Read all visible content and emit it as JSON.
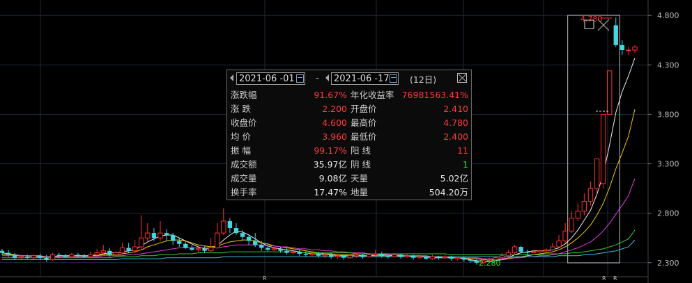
{
  "chart_data": {
    "type": "candlestick",
    "y_ticks": [
      "4.800",
      "4.300",
      "3.800",
      "3.300",
      "2.800",
      "2.300"
    ],
    "ylim": [
      2.2,
      4.9
    ],
    "x_markers": [
      "R",
      "R",
      "R"
    ],
    "annotations": {
      "high_label": "4.780",
      "low_label": "2.280"
    },
    "candles": [
      [
        2.42,
        2.4,
        2.44,
        2.38
      ],
      [
        2.4,
        2.38,
        2.43,
        2.36
      ],
      [
        2.38,
        2.35,
        2.4,
        2.33
      ],
      [
        2.35,
        2.36,
        2.38,
        2.33
      ],
      [
        2.36,
        2.35,
        2.38,
        2.34
      ],
      [
        2.35,
        2.37,
        2.38,
        2.33
      ],
      [
        2.37,
        2.35,
        2.39,
        2.33
      ],
      [
        2.35,
        2.33,
        2.38,
        2.31
      ],
      [
        2.33,
        2.38,
        2.4,
        2.32
      ],
      [
        2.38,
        2.37,
        2.4,
        2.35
      ],
      [
        2.37,
        2.36,
        2.39,
        2.35
      ],
      [
        2.36,
        2.38,
        2.4,
        2.35
      ],
      [
        2.38,
        2.37,
        2.4,
        2.35
      ],
      [
        2.37,
        2.36,
        2.39,
        2.35
      ],
      [
        2.36,
        2.38,
        2.41,
        2.35
      ],
      [
        2.38,
        2.4,
        2.44,
        2.37
      ],
      [
        2.4,
        2.42,
        2.48,
        2.38
      ],
      [
        2.42,
        2.38,
        2.45,
        2.36
      ],
      [
        2.38,
        2.4,
        2.42,
        2.36
      ],
      [
        2.4,
        2.45,
        2.5,
        2.38
      ],
      [
        2.45,
        2.42,
        2.5,
        2.4
      ],
      [
        2.42,
        2.46,
        2.53,
        2.4
      ],
      [
        2.46,
        2.55,
        2.78,
        2.44
      ],
      [
        2.55,
        2.6,
        2.7,
        2.5
      ],
      [
        2.6,
        2.55,
        2.65,
        2.52
      ],
      [
        2.55,
        2.6,
        2.72,
        2.52
      ],
      [
        2.6,
        2.58,
        2.64,
        2.52
      ],
      [
        2.58,
        2.52,
        2.6,
        2.48
      ],
      [
        2.52,
        2.49,
        2.55,
        2.46
      ],
      [
        2.49,
        2.45,
        2.52,
        2.44
      ],
      [
        2.45,
        2.43,
        2.48,
        2.42
      ],
      [
        2.43,
        2.44,
        2.47,
        2.41
      ],
      [
        2.44,
        2.42,
        2.47,
        2.4
      ],
      [
        2.42,
        2.45,
        2.55,
        2.41
      ],
      [
        2.45,
        2.6,
        2.7,
        2.44
      ],
      [
        2.6,
        2.72,
        2.85,
        2.58
      ],
      [
        2.72,
        2.65,
        2.75,
        2.6
      ],
      [
        2.65,
        2.6,
        2.7,
        2.58
      ],
      [
        2.6,
        2.56,
        2.63,
        2.52
      ],
      [
        2.56,
        2.52,
        2.58,
        2.48
      ],
      [
        2.52,
        2.48,
        2.6,
        2.46
      ],
      [
        2.48,
        2.45,
        2.52,
        2.42
      ],
      [
        2.45,
        2.43,
        2.49,
        2.41
      ],
      [
        2.43,
        2.44,
        2.47,
        2.42
      ],
      [
        2.44,
        2.42,
        2.46,
        2.4
      ],
      [
        2.42,
        2.4,
        2.45,
        2.38
      ],
      [
        2.4,
        2.41,
        2.44,
        2.38
      ],
      [
        2.41,
        2.39,
        2.43,
        2.37
      ],
      [
        2.39,
        2.38,
        2.42,
        2.36
      ],
      [
        2.38,
        2.39,
        2.41,
        2.36
      ],
      [
        2.39,
        2.37,
        2.41,
        2.35
      ],
      [
        2.37,
        2.38,
        2.4,
        2.35
      ],
      [
        2.38,
        2.36,
        2.4,
        2.34
      ],
      [
        2.36,
        2.37,
        2.39,
        2.34
      ],
      [
        2.37,
        2.35,
        2.38,
        2.33
      ],
      [
        2.35,
        2.37,
        2.39,
        2.34
      ],
      [
        2.37,
        2.38,
        2.4,
        2.35
      ],
      [
        2.38,
        2.36,
        2.39,
        2.34
      ],
      [
        2.36,
        2.38,
        2.4,
        2.35
      ],
      [
        2.38,
        2.39,
        2.43,
        2.36
      ],
      [
        2.39,
        2.37,
        2.41,
        2.35
      ],
      [
        2.37,
        2.36,
        2.38,
        2.34
      ],
      [
        2.36,
        2.38,
        2.39,
        2.35
      ],
      [
        2.38,
        2.36,
        2.39,
        2.34
      ],
      [
        2.36,
        2.37,
        2.39,
        2.35
      ],
      [
        2.37,
        2.35,
        2.38,
        2.33
      ],
      [
        2.35,
        2.36,
        2.38,
        2.34
      ],
      [
        2.36,
        2.34,
        2.37,
        2.33
      ],
      [
        2.34,
        2.36,
        2.38,
        2.33
      ],
      [
        2.36,
        2.35,
        2.37,
        2.33
      ],
      [
        2.35,
        2.36,
        2.38,
        2.34
      ],
      [
        2.36,
        2.34,
        2.37,
        2.32
      ],
      [
        2.34,
        2.35,
        2.36,
        2.32
      ],
      [
        2.35,
        2.33,
        2.36,
        2.31
      ],
      [
        2.33,
        2.32,
        2.34,
        2.3
      ],
      [
        2.32,
        2.3,
        2.34,
        2.28
      ],
      [
        2.3,
        2.32,
        2.34,
        2.28
      ],
      [
        2.32,
        2.33,
        2.35,
        2.3
      ],
      [
        2.33,
        2.35,
        2.37,
        2.32
      ],
      [
        2.35,
        2.37,
        2.4,
        2.33
      ],
      [
        2.37,
        2.4,
        2.43,
        2.35
      ],
      [
        2.4,
        2.46,
        2.48,
        2.38
      ],
      [
        2.46,
        2.41,
        2.47,
        2.4
      ],
      [
        2.41,
        2.4,
        2.43,
        2.38
      ],
      [
        2.41,
        2.41,
        2.43,
        2.4
      ],
      [
        2.41,
        2.42,
        2.43,
        2.4
      ],
      [
        2.42,
        2.43,
        2.45,
        2.41
      ],
      [
        2.43,
        2.46,
        2.5,
        2.42
      ],
      [
        2.46,
        2.52,
        2.58,
        2.45
      ],
      [
        2.52,
        2.62,
        2.7,
        2.5
      ],
      [
        2.62,
        2.75,
        2.82,
        2.6
      ],
      [
        2.75,
        2.82,
        2.9,
        2.72
      ],
      [
        2.82,
        2.92,
        3.0,
        2.78
      ],
      [
        2.92,
        3.05,
        3.12,
        2.88
      ],
      [
        3.05,
        3.35,
        3.35,
        3.0
      ],
      [
        3.1,
        3.8,
        3.8,
        3.05
      ],
      [
        3.8,
        4.24,
        4.24,
        3.8
      ],
      [
        4.7,
        4.5,
        4.78,
        4.48
      ],
      [
        4.5,
        4.45,
        4.55,
        4.4
      ],
      [
        4.45,
        4.45,
        4.48,
        4.4
      ],
      [
        4.45,
        4.48,
        4.5,
        4.42
      ]
    ],
    "ma_lines": [
      {
        "color": "#f0f0f0",
        "values": [
          2.4,
          2.39,
          2.38,
          2.37,
          2.37,
          2.36,
          2.36,
          2.36,
          2.36,
          2.37,
          2.37,
          2.37,
          2.37,
          2.37,
          2.37,
          2.38,
          2.39,
          2.4,
          2.4,
          2.41,
          2.42,
          2.43,
          2.47,
          2.51,
          2.54,
          2.57,
          2.58,
          2.58,
          2.55,
          2.52,
          2.49,
          2.46,
          2.44,
          2.44,
          2.47,
          2.53,
          2.58,
          2.62,
          2.61,
          2.58,
          2.54,
          2.5,
          2.47,
          2.45,
          2.44,
          2.43,
          2.42,
          2.41,
          2.4,
          2.39,
          2.39,
          2.38,
          2.38,
          2.37,
          2.37,
          2.37,
          2.37,
          2.37,
          2.37,
          2.38,
          2.38,
          2.38,
          2.37,
          2.37,
          2.37,
          2.36,
          2.36,
          2.36,
          2.35,
          2.35,
          2.35,
          2.35,
          2.35,
          2.34,
          2.33,
          2.32,
          2.31,
          2.31,
          2.32,
          2.33,
          2.35,
          2.38,
          2.4,
          2.41,
          2.42,
          2.42,
          2.42,
          2.43,
          2.45,
          2.49,
          2.55,
          2.63,
          2.73,
          2.83,
          2.99,
          3.19,
          3.49,
          3.82,
          4.03,
          4.19,
          4.37
        ]
      },
      {
        "color": "#f0c800",
        "values": [
          2.38,
          2.38,
          2.38,
          2.37,
          2.37,
          2.37,
          2.37,
          2.36,
          2.36,
          2.36,
          2.36,
          2.36,
          2.36,
          2.36,
          2.37,
          2.37,
          2.38,
          2.38,
          2.38,
          2.39,
          2.4,
          2.41,
          2.43,
          2.46,
          2.48,
          2.5,
          2.52,
          2.53,
          2.53,
          2.52,
          2.5,
          2.48,
          2.47,
          2.46,
          2.47,
          2.49,
          2.51,
          2.52,
          2.53,
          2.53,
          2.52,
          2.5,
          2.49,
          2.47,
          2.46,
          2.45,
          2.44,
          2.43,
          2.42,
          2.41,
          2.4,
          2.39,
          2.39,
          2.38,
          2.38,
          2.38,
          2.38,
          2.37,
          2.37,
          2.37,
          2.37,
          2.37,
          2.37,
          2.37,
          2.37,
          2.37,
          2.37,
          2.36,
          2.36,
          2.36,
          2.36,
          2.35,
          2.35,
          2.35,
          2.34,
          2.34,
          2.33,
          2.33,
          2.33,
          2.33,
          2.34,
          2.35,
          2.36,
          2.37,
          2.38,
          2.39,
          2.4,
          2.41,
          2.43,
          2.46,
          2.5,
          2.55,
          2.61,
          2.68,
          2.78,
          2.9,
          3.06,
          3.25,
          3.41,
          3.58,
          3.85
        ]
      },
      {
        "color": "#e040e0",
        "values": [
          2.37,
          2.37,
          2.37,
          2.37,
          2.37,
          2.37,
          2.36,
          2.36,
          2.36,
          2.36,
          2.36,
          2.36,
          2.36,
          2.36,
          2.36,
          2.36,
          2.37,
          2.37,
          2.37,
          2.37,
          2.38,
          2.38,
          2.39,
          2.4,
          2.41,
          2.42,
          2.43,
          2.44,
          2.45,
          2.45,
          2.45,
          2.45,
          2.45,
          2.45,
          2.45,
          2.46,
          2.47,
          2.48,
          2.48,
          2.48,
          2.48,
          2.48,
          2.47,
          2.47,
          2.46,
          2.46,
          2.45,
          2.44,
          2.44,
          2.43,
          2.43,
          2.42,
          2.42,
          2.41,
          2.41,
          2.4,
          2.4,
          2.4,
          2.39,
          2.39,
          2.39,
          2.38,
          2.38,
          2.38,
          2.37,
          2.37,
          2.37,
          2.37,
          2.36,
          2.36,
          2.36,
          2.36,
          2.35,
          2.35,
          2.35,
          2.35,
          2.34,
          2.34,
          2.34,
          2.34,
          2.35,
          2.35,
          2.35,
          2.36,
          2.36,
          2.37,
          2.37,
          2.38,
          2.39,
          2.41,
          2.43,
          2.45,
          2.48,
          2.51,
          2.56,
          2.62,
          2.7,
          2.79,
          2.88,
          2.98,
          3.15
        ]
      },
      {
        "color": "#30d030",
        "values": [
          2.35,
          2.35,
          2.35,
          2.35,
          2.35,
          2.35,
          2.35,
          2.35,
          2.35,
          2.35,
          2.35,
          2.35,
          2.35,
          2.35,
          2.35,
          2.35,
          2.35,
          2.35,
          2.36,
          2.36,
          2.36,
          2.36,
          2.37,
          2.37,
          2.37,
          2.38,
          2.38,
          2.38,
          2.39,
          2.39,
          2.39,
          2.4,
          2.4,
          2.4,
          2.4,
          2.4,
          2.41,
          2.41,
          2.41,
          2.41,
          2.41,
          2.41,
          2.41,
          2.41,
          2.41,
          2.41,
          2.41,
          2.41,
          2.4,
          2.4,
          2.4,
          2.4,
          2.4,
          2.4,
          2.4,
          2.4,
          2.39,
          2.39,
          2.39,
          2.39,
          2.39,
          2.39,
          2.39,
          2.39,
          2.39,
          2.39,
          2.39,
          2.39,
          2.39,
          2.39,
          2.39,
          2.38,
          2.38,
          2.38,
          2.38,
          2.38,
          2.38,
          2.38,
          2.38,
          2.38,
          2.38,
          2.38,
          2.38,
          2.38,
          2.38,
          2.38,
          2.39,
          2.39,
          2.39,
          2.39,
          2.4,
          2.4,
          2.41,
          2.42,
          2.43,
          2.44,
          2.46,
          2.48,
          2.51,
          2.54,
          2.63
        ]
      },
      {
        "color": "#40c0e0",
        "values": [
          2.33,
          2.33,
          2.33,
          2.33,
          2.33,
          2.33,
          2.33,
          2.33,
          2.33,
          2.33,
          2.33,
          2.33,
          2.33,
          2.33,
          2.33,
          2.33,
          2.33,
          2.33,
          2.33,
          2.34,
          2.34,
          2.34,
          2.34,
          2.34,
          2.34,
          2.34,
          2.35,
          2.35,
          2.35,
          2.35,
          2.35,
          2.35,
          2.35,
          2.35,
          2.35,
          2.36,
          2.36,
          2.36,
          2.36,
          2.36,
          2.36,
          2.36,
          2.36,
          2.36,
          2.36,
          2.36,
          2.36,
          2.36,
          2.36,
          2.36,
          2.36,
          2.36,
          2.36,
          2.36,
          2.36,
          2.36,
          2.36,
          2.36,
          2.36,
          2.36,
          2.36,
          2.36,
          2.36,
          2.36,
          2.36,
          2.36,
          2.36,
          2.36,
          2.36,
          2.36,
          2.36,
          2.36,
          2.36,
          2.36,
          2.36,
          2.36,
          2.36,
          2.36,
          2.36,
          2.36,
          2.36,
          2.36,
          2.36,
          2.36,
          2.36,
          2.36,
          2.36,
          2.36,
          2.37,
          2.37,
          2.37,
          2.37,
          2.38,
          2.38,
          2.39,
          2.4,
          2.41,
          2.42,
          2.44,
          2.46,
          2.53
        ]
      }
    ],
    "selection": {
      "start_index": 90,
      "end_index": 97
    }
  },
  "stats_box": {
    "start_date": "2021-06 -01",
    "end_date": "2021-06 -17",
    "separator": "-",
    "days": "(12日)",
    "rows": [
      {
        "label1": "涨跌幅",
        "value1": "91.67%",
        "c1": "red",
        "label2": "年化收益率",
        "value2": "76981563.41%",
        "c2": "red"
      },
      {
        "label1": "涨  跌",
        "value1": "2.200",
        "c1": "red",
        "label2": "开盘价",
        "value2": "2.410",
        "c2": "red"
      },
      {
        "label1": "收盘价",
        "value1": "4.600",
        "c1": "red",
        "label2": "最高价",
        "value2": "4.780",
        "c2": "red"
      },
      {
        "label1": "均  价",
        "value1": "3.960",
        "c1": "red",
        "label2": "最低价",
        "value2": "2.400",
        "c2": "red"
      },
      {
        "label1": "振  幅",
        "value1": "99.17%",
        "c1": "red",
        "label2": "阳  线",
        "value2": "11",
        "c2": "red"
      },
      {
        "label1": "成交额",
        "value1": "35.97亿",
        "c1": "wht",
        "label2": "阴  线",
        "value2": "1",
        "c2": "grn"
      },
      {
        "label1": "成交量",
        "value1": "9.08亿",
        "c1": "wht",
        "label2": "天量",
        "value2": "5.02亿",
        "c2": "wht"
      },
      {
        "label1": "换手率",
        "value1": "17.47%",
        "c1": "wht",
        "label2": "地量",
        "value2": "504.20万",
        "c2": "wht"
      }
    ]
  }
}
